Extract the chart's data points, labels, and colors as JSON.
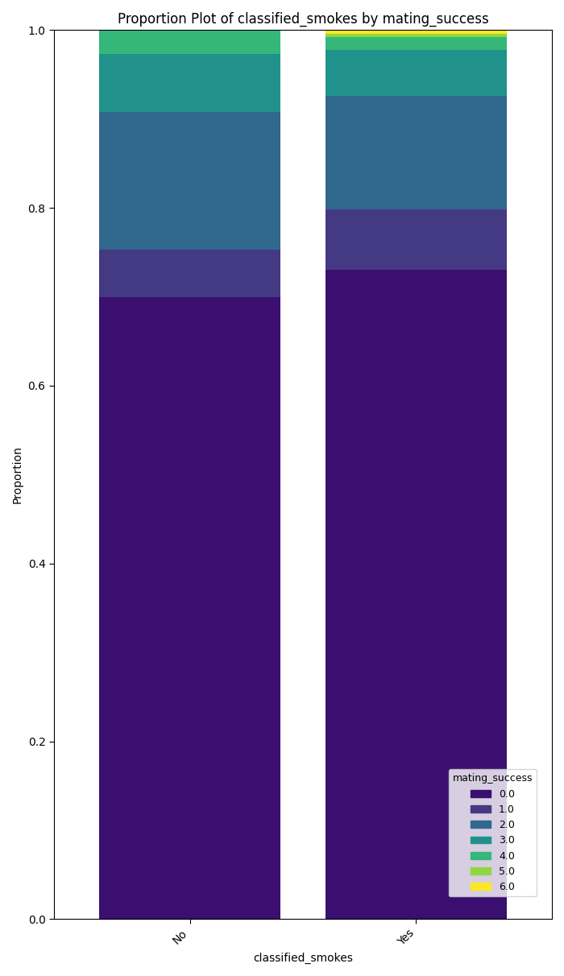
{
  "categories": [
    "No",
    "Yes"
  ],
  "title": "Proportion Plot of classified_smokes by mating_success",
  "xlabel": "classified_smokes",
  "ylabel": "Proportion",
  "legend_title": "mating_success",
  "series_labels": [
    "0.0",
    "1.0",
    "2.0",
    "3.0",
    "4.0",
    "5.0",
    "6.0"
  ],
  "proportions": {
    "No": [
      0.7,
      0.053,
      0.155,
      0.065,
      0.06,
      0.005,
      0.01
    ],
    "Yes": [
      0.73,
      0.068,
      0.128,
      0.052,
      0.014,
      0.004,
      0.004
    ]
  },
  "colors": [
    "#3b0f70",
    "#443983",
    "#31688e",
    "#21918c",
    "#35b779",
    "#90d743",
    "#fde725"
  ],
  "ylim": [
    0.0,
    1.0
  ],
  "bar_width": 0.8,
  "xlim": [
    -0.6,
    1.6
  ]
}
